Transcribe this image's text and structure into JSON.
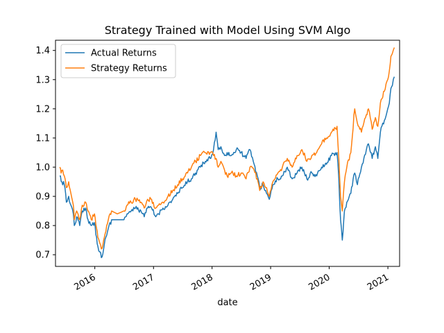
{
  "chart_data": {
    "type": "line",
    "title": "Strategy Trained with Model Using SVM Algo",
    "xlabel": "date",
    "ylabel": "",
    "x_ticks": [
      "2016",
      "2017",
      "2018",
      "2019",
      "2020",
      "2021"
    ],
    "y_ticks": [
      "0.7",
      "0.8",
      "0.9",
      "1.0",
      "1.1",
      "1.2",
      "1.3",
      "1.4"
    ],
    "xlim": [
      "2015-05-01",
      "2021-03-15"
    ],
    "ylim": [
      0.66,
      1.435
    ],
    "legend": "top-left",
    "grid": false,
    "series": [
      {
        "name": "Actual Returns",
        "color": "#1f77b4",
        "points": [
          [
            "2015-05-27",
            0.97
          ],
          [
            "2015-06-10",
            0.95
          ],
          [
            "2015-06-25",
            0.94
          ],
          [
            "2015-07-08",
            0.88
          ],
          [
            "2015-07-22",
            0.9
          ],
          [
            "2015-08-05",
            0.87
          ],
          [
            "2015-08-20",
            0.84
          ],
          [
            "2015-08-26",
            0.8
          ],
          [
            "2015-09-10",
            0.83
          ],
          [
            "2015-09-29",
            0.8
          ],
          [
            "2015-10-15",
            0.85
          ],
          [
            "2015-11-05",
            0.86
          ],
          [
            "2015-11-20",
            0.82
          ],
          [
            "2015-12-10",
            0.8
          ],
          [
            "2015-12-30",
            0.81
          ],
          [
            "2016-01-12",
            0.76
          ],
          [
            "2016-01-20",
            0.73
          ],
          [
            "2016-02-01",
            0.71
          ],
          [
            "2016-02-11",
            0.69
          ],
          [
            "2016-02-25",
            0.72
          ],
          [
            "2016-03-10",
            0.76
          ],
          [
            "2016-03-25",
            0.79
          ],
          [
            "2016-04-15",
            0.82
          ],
          [
            "2016-05-20",
            0.82
          ],
          [
            "2016-07-01",
            0.82
          ],
          [
            "2016-07-20",
            0.84
          ],
          [
            "2016-08-15",
            0.85
          ],
          [
            "2016-09-10",
            0.86
          ],
          [
            "2016-10-15",
            0.85
          ],
          [
            "2016-11-04",
            0.83
          ],
          [
            "2016-11-25",
            0.86
          ],
          [
            "2016-12-20",
            0.86
          ],
          [
            "2017-01-15",
            0.83
          ],
          [
            "2017-02-01",
            0.84
          ],
          [
            "2017-03-01",
            0.86
          ],
          [
            "2017-04-01",
            0.87
          ],
          [
            "2017-05-01",
            0.89
          ],
          [
            "2017-06-01",
            0.91
          ],
          [
            "2017-07-01",
            0.93
          ],
          [
            "2017-08-01",
            0.95
          ],
          [
            "2017-08-25",
            0.96
          ],
          [
            "2017-09-20",
            0.98
          ],
          [
            "2017-10-20",
            1.0
          ],
          [
            "2017-11-20",
            1.02
          ],
          [
            "2017-12-20",
            1.03
          ],
          [
            "2018-01-10",
            1.06
          ],
          [
            "2018-01-26",
            1.12
          ],
          [
            "2018-02-08",
            1.06
          ],
          [
            "2018-02-25",
            1.07
          ],
          [
            "2018-03-20",
            1.04
          ],
          [
            "2018-04-05",
            1.05
          ],
          [
            "2018-05-01",
            1.04
          ],
          [
            "2018-06-01",
            1.06
          ],
          [
            "2018-07-01",
            1.05
          ],
          [
            "2018-08-01",
            1.03
          ],
          [
            "2018-08-25",
            1.06
          ],
          [
            "2018-09-20",
            1.01
          ],
          [
            "2018-10-10",
            0.97
          ],
          [
            "2018-10-25",
            0.93
          ],
          [
            "2018-11-15",
            0.94
          ],
          [
            "2018-12-01",
            0.92
          ],
          [
            "2018-12-24",
            0.89
          ],
          [
            "2019-01-15",
            0.94
          ],
          [
            "2019-02-15",
            0.96
          ],
          [
            "2019-03-15",
            0.97
          ],
          [
            "2019-04-15",
            1.0
          ],
          [
            "2019-05-15",
            0.96
          ],
          [
            "2019-06-15",
            0.98
          ],
          [
            "2019-07-15",
            1.0
          ],
          [
            "2019-08-15",
            0.96
          ],
          [
            "2019-09-15",
            0.98
          ],
          [
            "2019-10-15",
            0.97
          ],
          [
            "2019-11-15",
            1.0
          ],
          [
            "2019-12-15",
            1.01
          ],
          [
            "2020-01-15",
            1.04
          ],
          [
            "2020-02-19",
            1.05
          ],
          [
            "2020-03-01",
            0.96
          ],
          [
            "2020-03-12",
            0.82
          ],
          [
            "2020-03-23",
            0.75
          ],
          [
            "2020-04-05",
            0.85
          ],
          [
            "2020-04-20",
            0.88
          ],
          [
            "2020-05-15",
            0.91
          ],
          [
            "2020-06-08",
            0.98
          ],
          [
            "2020-06-25",
            0.94
          ],
          [
            "2020-07-20",
            1.0
          ],
          [
            "2020-08-20",
            1.06
          ],
          [
            "2020-09-02",
            1.08
          ],
          [
            "2020-09-25",
            1.03
          ],
          [
            "2020-10-15",
            1.07
          ],
          [
            "2020-10-30",
            1.03
          ],
          [
            "2020-11-15",
            1.12
          ],
          [
            "2020-12-10",
            1.16
          ],
          [
            "2020-12-31",
            1.2
          ],
          [
            "2021-01-10",
            1.22
          ],
          [
            "2021-01-20",
            1.27
          ],
          [
            "2021-01-29",
            1.28
          ],
          [
            "2021-02-10",
            1.31
          ]
        ]
      },
      {
        "name": "Strategy Returns",
        "color": "#ff7f0e",
        "points": [
          [
            "2015-05-27",
            1.0
          ],
          [
            "2015-06-05",
            0.98
          ],
          [
            "2015-06-15",
            0.99
          ],
          [
            "2015-06-25",
            0.97
          ],
          [
            "2015-07-08",
            0.93
          ],
          [
            "2015-07-22",
            0.95
          ],
          [
            "2015-08-05",
            0.91
          ],
          [
            "2015-08-20",
            0.87
          ],
          [
            "2015-08-26",
            0.82
          ],
          [
            "2015-09-10",
            0.85
          ],
          [
            "2015-09-29",
            0.82
          ],
          [
            "2015-10-15",
            0.87
          ],
          [
            "2015-11-05",
            0.88
          ],
          [
            "2015-11-20",
            0.85
          ],
          [
            "2015-12-10",
            0.82
          ],
          [
            "2015-12-30",
            0.84
          ],
          [
            "2016-01-12",
            0.79
          ],
          [
            "2016-01-20",
            0.76
          ],
          [
            "2016-02-01",
            0.74
          ],
          [
            "2016-02-11",
            0.72
          ],
          [
            "2016-02-25",
            0.75
          ],
          [
            "2016-03-10",
            0.78
          ],
          [
            "2016-03-25",
            0.82
          ],
          [
            "2016-04-15",
            0.85
          ],
          [
            "2016-05-20",
            0.84
          ],
          [
            "2016-07-01",
            0.85
          ],
          [
            "2016-07-20",
            0.87
          ],
          [
            "2016-08-15",
            0.88
          ],
          [
            "2016-09-10",
            0.89
          ],
          [
            "2016-10-15",
            0.88
          ],
          [
            "2016-11-04",
            0.86
          ],
          [
            "2016-11-25",
            0.89
          ],
          [
            "2016-12-20",
            0.89
          ],
          [
            "2017-01-15",
            0.86
          ],
          [
            "2017-02-01",
            0.87
          ],
          [
            "2017-03-01",
            0.88
          ],
          [
            "2017-04-01",
            0.9
          ],
          [
            "2017-05-01",
            0.92
          ],
          [
            "2017-06-01",
            0.94
          ],
          [
            "2017-07-01",
            0.96
          ],
          [
            "2017-08-01",
            0.98
          ],
          [
            "2017-08-25",
            1.0
          ],
          [
            "2017-09-20",
            1.02
          ],
          [
            "2017-10-20",
            1.04
          ],
          [
            "2017-11-20",
            1.05
          ],
          [
            "2017-12-20",
            1.05
          ],
          [
            "2018-01-10",
            1.04
          ],
          [
            "2018-01-26",
            1.03
          ],
          [
            "2018-02-08",
            1.0
          ],
          [
            "2018-02-25",
            1.02
          ],
          [
            "2018-03-20",
            0.99
          ],
          [
            "2018-04-05",
            0.97
          ],
          [
            "2018-05-01",
            0.98
          ],
          [
            "2018-06-01",
            0.97
          ],
          [
            "2018-07-01",
            0.98
          ],
          [
            "2018-08-01",
            0.96
          ],
          [
            "2018-08-25",
            1.0
          ],
          [
            "2018-09-20",
            0.99
          ],
          [
            "2018-10-10",
            0.96
          ],
          [
            "2018-10-25",
            0.92
          ],
          [
            "2018-11-15",
            0.95
          ],
          [
            "2018-12-01",
            0.93
          ],
          [
            "2018-12-24",
            0.9
          ],
          [
            "2019-01-15",
            0.95
          ],
          [
            "2019-02-15",
            0.98
          ],
          [
            "2019-03-15",
            1.0
          ],
          [
            "2019-04-15",
            1.03
          ],
          [
            "2019-05-15",
            1.0
          ],
          [
            "2019-06-15",
            1.04
          ],
          [
            "2019-07-15",
            1.06
          ],
          [
            "2019-08-15",
            1.02
          ],
          [
            "2019-09-15",
            1.04
          ],
          [
            "2019-10-15",
            1.05
          ],
          [
            "2019-11-15",
            1.08
          ],
          [
            "2019-12-15",
            1.1
          ],
          [
            "2020-01-15",
            1.12
          ],
          [
            "2020-02-19",
            1.14
          ],
          [
            "2020-03-01",
            1.03
          ],
          [
            "2020-03-12",
            0.9
          ],
          [
            "2020-03-23",
            0.85
          ],
          [
            "2020-04-05",
            0.95
          ],
          [
            "2020-04-20",
            1.0
          ],
          [
            "2020-05-15",
            1.05
          ],
          [
            "2020-06-08",
            1.2
          ],
          [
            "2020-06-25",
            1.15
          ],
          [
            "2020-07-20",
            1.12
          ],
          [
            "2020-08-20",
            1.18
          ],
          [
            "2020-09-02",
            1.2
          ],
          [
            "2020-09-25",
            1.13
          ],
          [
            "2020-10-15",
            1.17
          ],
          [
            "2020-10-30",
            1.14
          ],
          [
            "2020-11-15",
            1.22
          ],
          [
            "2020-12-10",
            1.26
          ],
          [
            "2020-12-31",
            1.3
          ],
          [
            "2021-01-10",
            1.33
          ],
          [
            "2021-01-20",
            1.38
          ],
          [
            "2021-01-29",
            1.39
          ],
          [
            "2021-02-10",
            1.41
          ]
        ]
      }
    ]
  }
}
